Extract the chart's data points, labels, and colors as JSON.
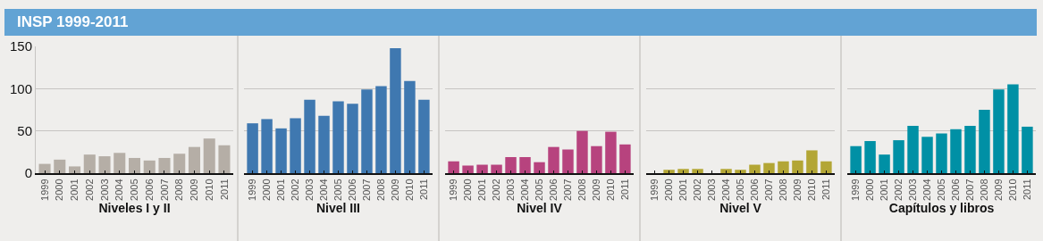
{
  "chart_data": [
    {
      "type": "bar",
      "title": "INSP 1999-2011",
      "xlabel": "Niveles I y II",
      "categories": [
        "1999",
        "2000",
        "2001",
        "2002",
        "2003",
        "2004",
        "2005",
        "2006",
        "2007",
        "2008",
        "2009",
        "2010",
        "2011"
      ],
      "values": [
        11,
        16,
        8,
        22,
        20,
        24,
        18,
        15,
        18,
        23,
        31,
        41,
        33
      ],
      "color": "#b5aea6",
      "ylim": [
        0,
        150
      ],
      "yticks": [
        0,
        50,
        100,
        150
      ],
      "grid": "y"
    },
    {
      "type": "bar",
      "xlabel": "Nivel III",
      "categories": [
        "1999",
        "2000",
        "2001",
        "2002",
        "2003",
        "2004",
        "2005",
        "2006",
        "2007",
        "2008",
        "2009",
        "2010",
        "2011"
      ],
      "values": [
        59,
        64,
        53,
        65,
        87,
        68,
        85,
        82,
        99,
        103,
        148,
        109,
        87
      ],
      "color": "#3f78b0",
      "ylim": [
        0,
        150
      ],
      "yticks": [
        0,
        50,
        100,
        150
      ],
      "grid": "y",
      "tick_labels": "x"
    },
    {
      "type": "bar",
      "xlabel": "Nivel IV",
      "categories": [
        "1999",
        "2000",
        "2001",
        "2002",
        "2003",
        "2004",
        "2005",
        "2006",
        "2007",
        "2008",
        "2009",
        "2010",
        "2011"
      ],
      "values": [
        14,
        9,
        10,
        10,
        19,
        19,
        13,
        31,
        28,
        50,
        32,
        49,
        34
      ],
      "color": "#b7437e",
      "ylim": [
        0,
        150
      ],
      "yticks": [
        0,
        50,
        100,
        150
      ],
      "grid": "y",
      "tick_labels": "x"
    },
    {
      "type": "bar",
      "xlabel": "Nivel V",
      "categories": [
        "1999",
        "2000",
        "2001",
        "2002",
        "2003",
        "2004",
        "2005",
        "2006",
        "2007",
        "2008",
        "2009",
        "2010",
        "2011"
      ],
      "values": [
        0,
        4,
        5,
        5,
        0,
        5,
        4,
        10,
        12,
        14,
        15,
        27,
        14
      ],
      "color": "#b3a635",
      "ylim": [
        0,
        150
      ],
      "yticks": [
        0,
        50,
        100,
        150
      ],
      "grid": "y",
      "tick_labels": "x"
    },
    {
      "type": "bar",
      "xlabel": "Capítulos y libros",
      "categories": [
        "1999",
        "2000",
        "2001",
        "2002",
        "2003",
        "2004",
        "2005",
        "2006",
        "2007",
        "2008",
        "2009",
        "2010",
        "2011"
      ],
      "values": [
        32,
        38,
        22,
        39,
        56,
        43,
        47,
        52,
        56,
        75,
        99,
        105,
        55
      ],
      "color": "#0090a5",
      "ylim": [
        0,
        150
      ],
      "yticks": [
        0,
        50,
        100,
        150
      ],
      "grid": "y",
      "tick_labels": "x"
    }
  ]
}
